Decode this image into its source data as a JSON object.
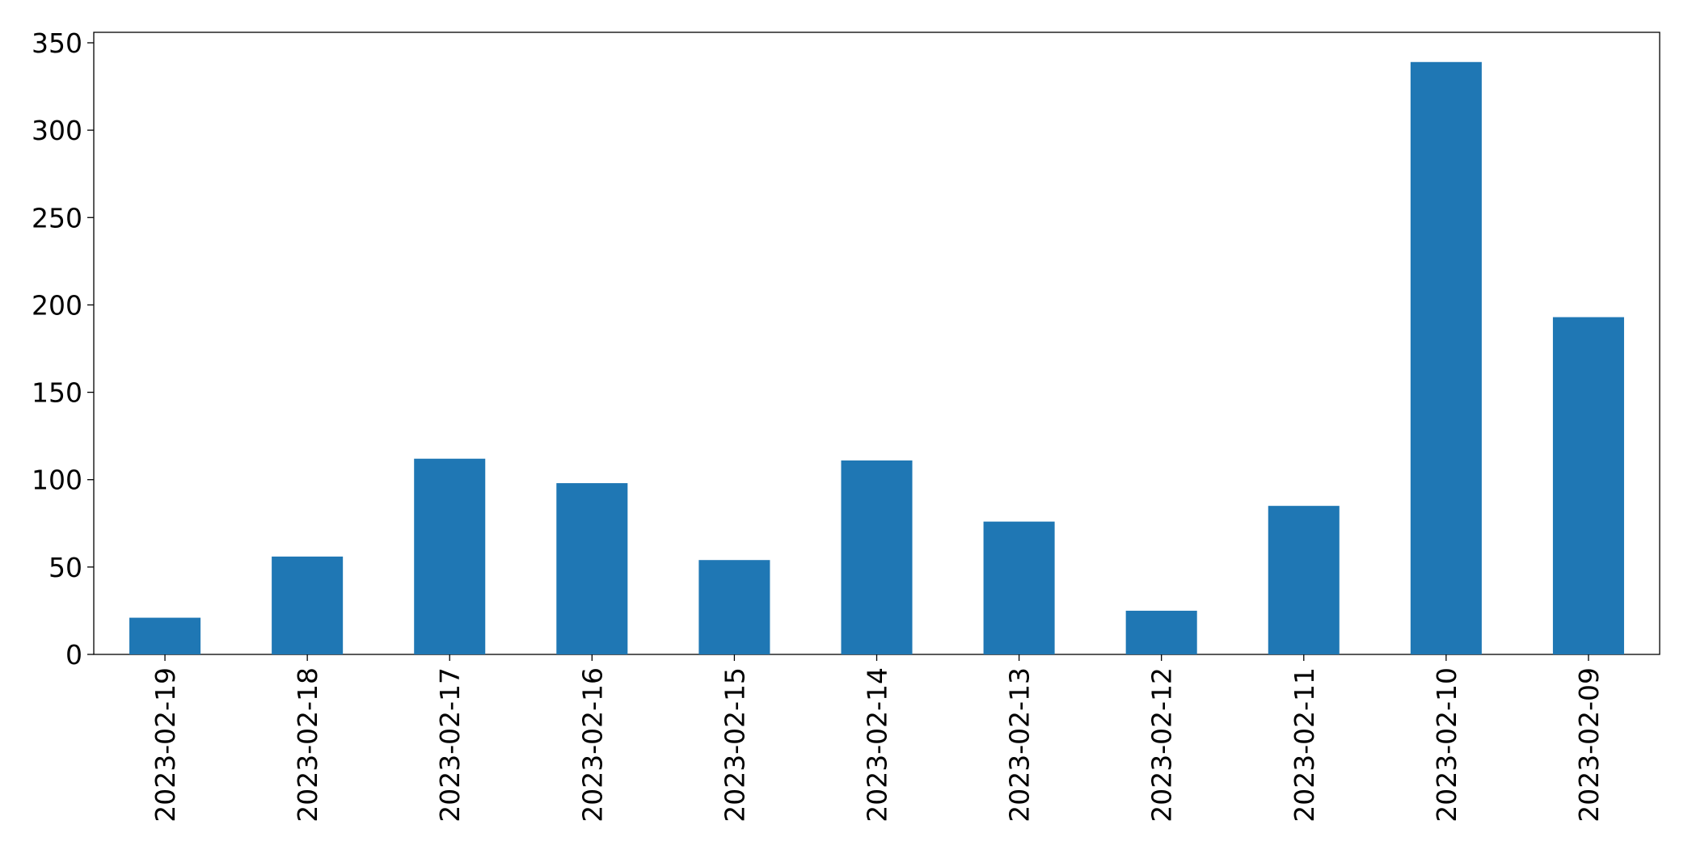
{
  "chart_data": {
    "type": "bar",
    "categories": [
      "2023-02-19",
      "2023-02-18",
      "2023-02-17",
      "2023-02-16",
      "2023-02-15",
      "2023-02-14",
      "2023-02-13",
      "2023-02-12",
      "2023-02-11",
      "2023-02-10",
      "2023-02-09"
    ],
    "values": [
      21,
      56,
      112,
      98,
      54,
      111,
      76,
      25,
      85,
      339,
      193
    ],
    "color": "#1f77b4",
    "ylim": [
      0,
      356
    ],
    "yticks": [
      0,
      50,
      100,
      150,
      200,
      250,
      300,
      350
    ],
    "grid": false
  }
}
